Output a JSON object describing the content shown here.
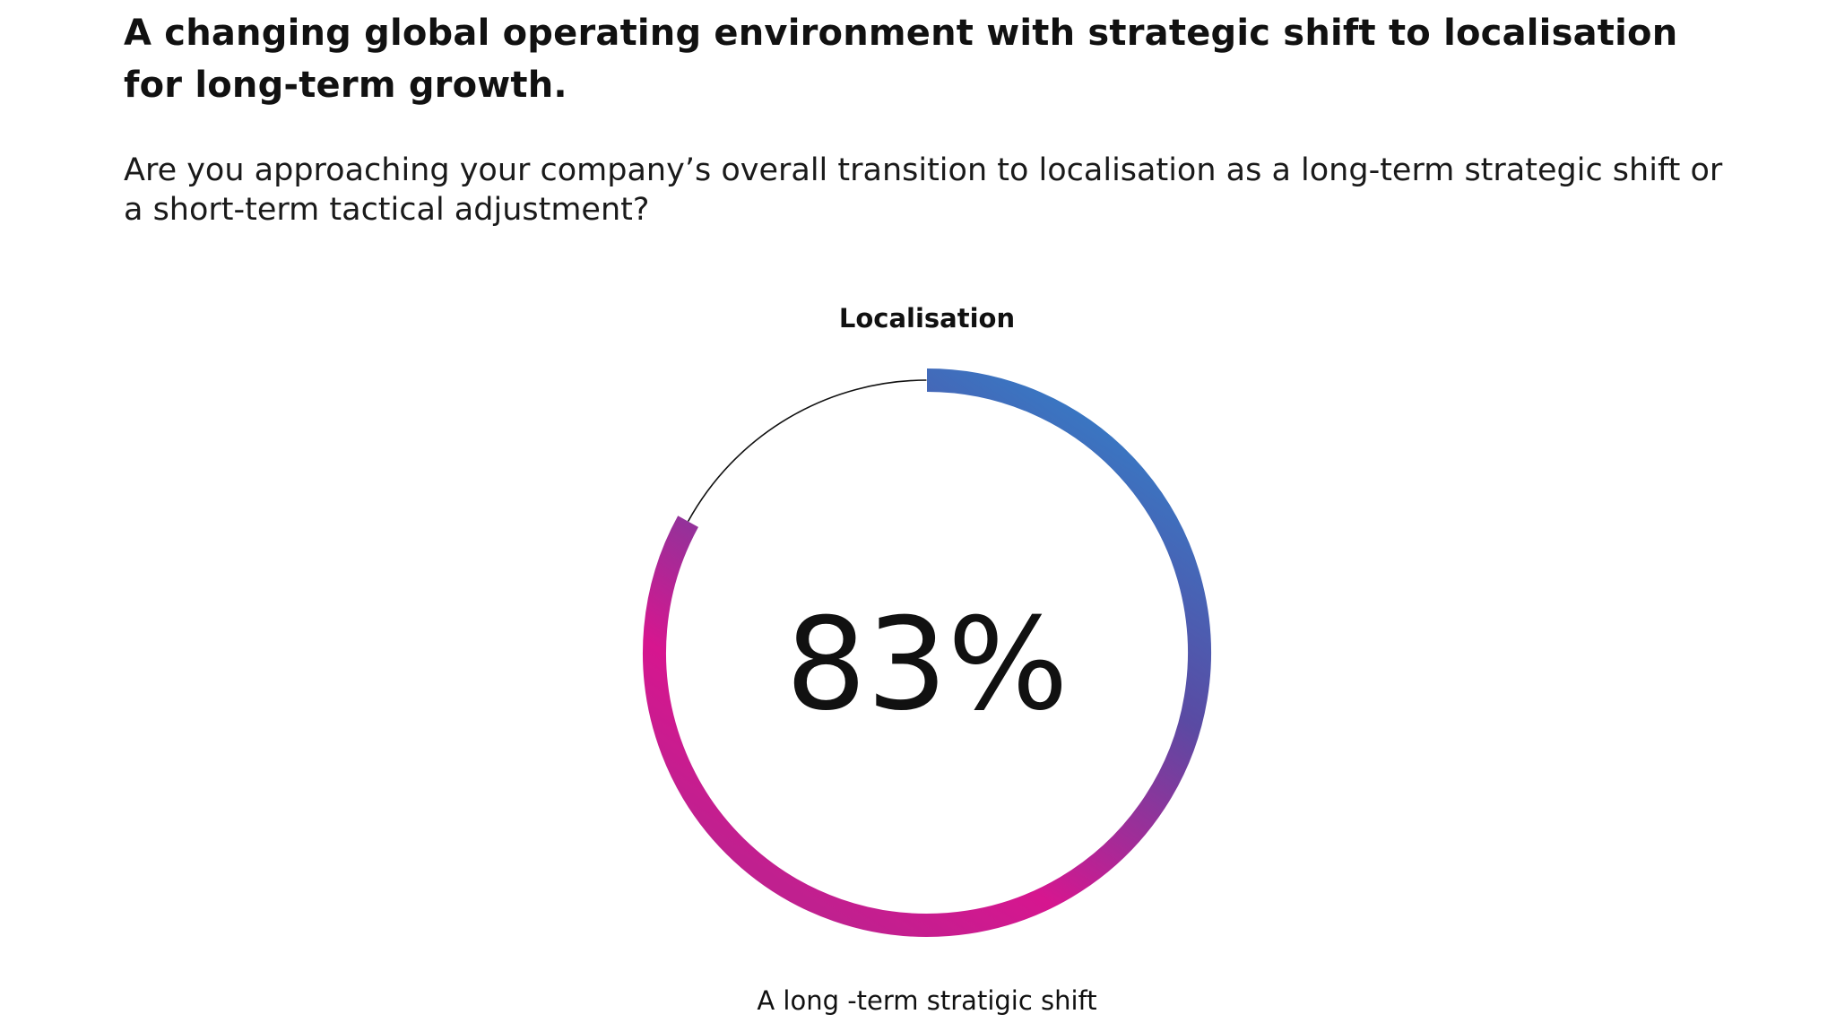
{
  "page": {
    "headline_line1": "A changing global operating environment with strategic shift to localisation",
    "headline_line2": "for long-term growth.",
    "question": "Are you approaching your company’s overall transition to localisation as a long-term strategic shift or a short-term tactical adjustment?"
  },
  "chart_data": {
    "type": "pie",
    "title": "Localisation",
    "value": 83,
    "value_label": "83%",
    "caption": "A long -term stratigic shift",
    "max": 100,
    "colors": {
      "gradient_start": "#2b8ad0",
      "gradient_mid": "#5a4aa3",
      "gradient_end": "#d6168f",
      "remainder_line": "#111111"
    }
  }
}
